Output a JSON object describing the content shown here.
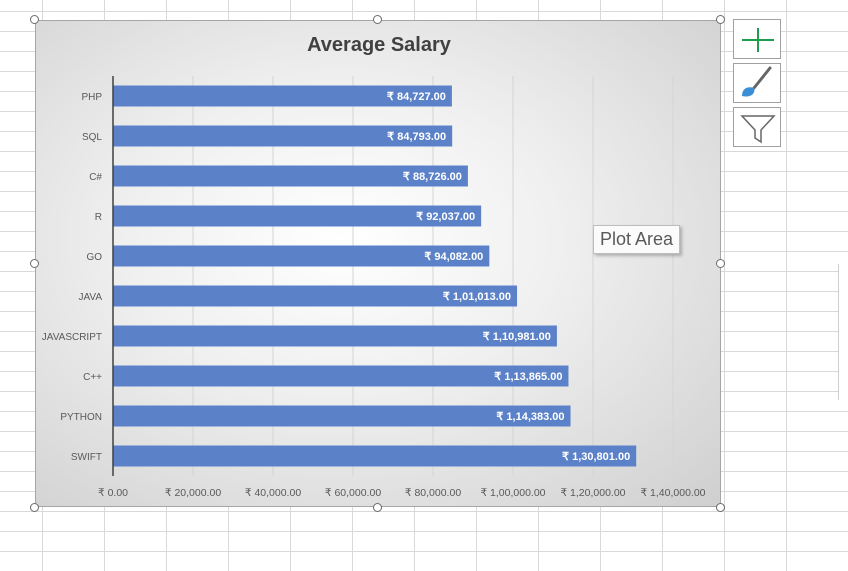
{
  "chart_data": {
    "type": "bar",
    "orientation": "horizontal",
    "title": "Average Salary",
    "categories": [
      "PHP",
      "SQL",
      "C#",
      "R",
      "GO",
      "JAVA",
      "JAVASCRIPT",
      "C++",
      "PYTHON",
      "SWIFT"
    ],
    "values": [
      84727,
      84793,
      88726,
      92037,
      94082,
      101013,
      110981,
      113865,
      114383,
      130801
    ],
    "value_labels": [
      "₹ 84,727.00",
      "₹ 84,793.00",
      "₹ 88,726.00",
      "₹ 92,037.00",
      "₹ 94,082.00",
      "₹ 1,01,013.00",
      "₹ 1,10,981.00",
      "₹ 1,13,865.00",
      "₹ 1,14,383.00",
      "₹ 1,30,801.00"
    ],
    "x_ticks": [
      0,
      20000,
      40000,
      60000,
      80000,
      100000,
      120000,
      140000
    ],
    "x_tick_labels": [
      "₹ 0.00",
      "₹ 20,000.00",
      "₹ 40,000.00",
      "₹ 60,000.00",
      "₹ 80,000.00",
      "₹ 1,00,000.00",
      "₹ 1,20,000.00",
      "₹ 1,40,000.00"
    ],
    "xlim": [
      0,
      140000
    ],
    "xlabel": "",
    "ylabel": "",
    "grid": "vertical",
    "legend": "none",
    "bar_color": "#5b82c9"
  },
  "tooltip": "Plot Area",
  "tools": [
    {
      "name": "chart-elements",
      "icon": "plus-icon"
    },
    {
      "name": "chart-styles",
      "icon": "paintbrush-icon"
    },
    {
      "name": "chart-filters",
      "icon": "funnel-icon"
    }
  ]
}
